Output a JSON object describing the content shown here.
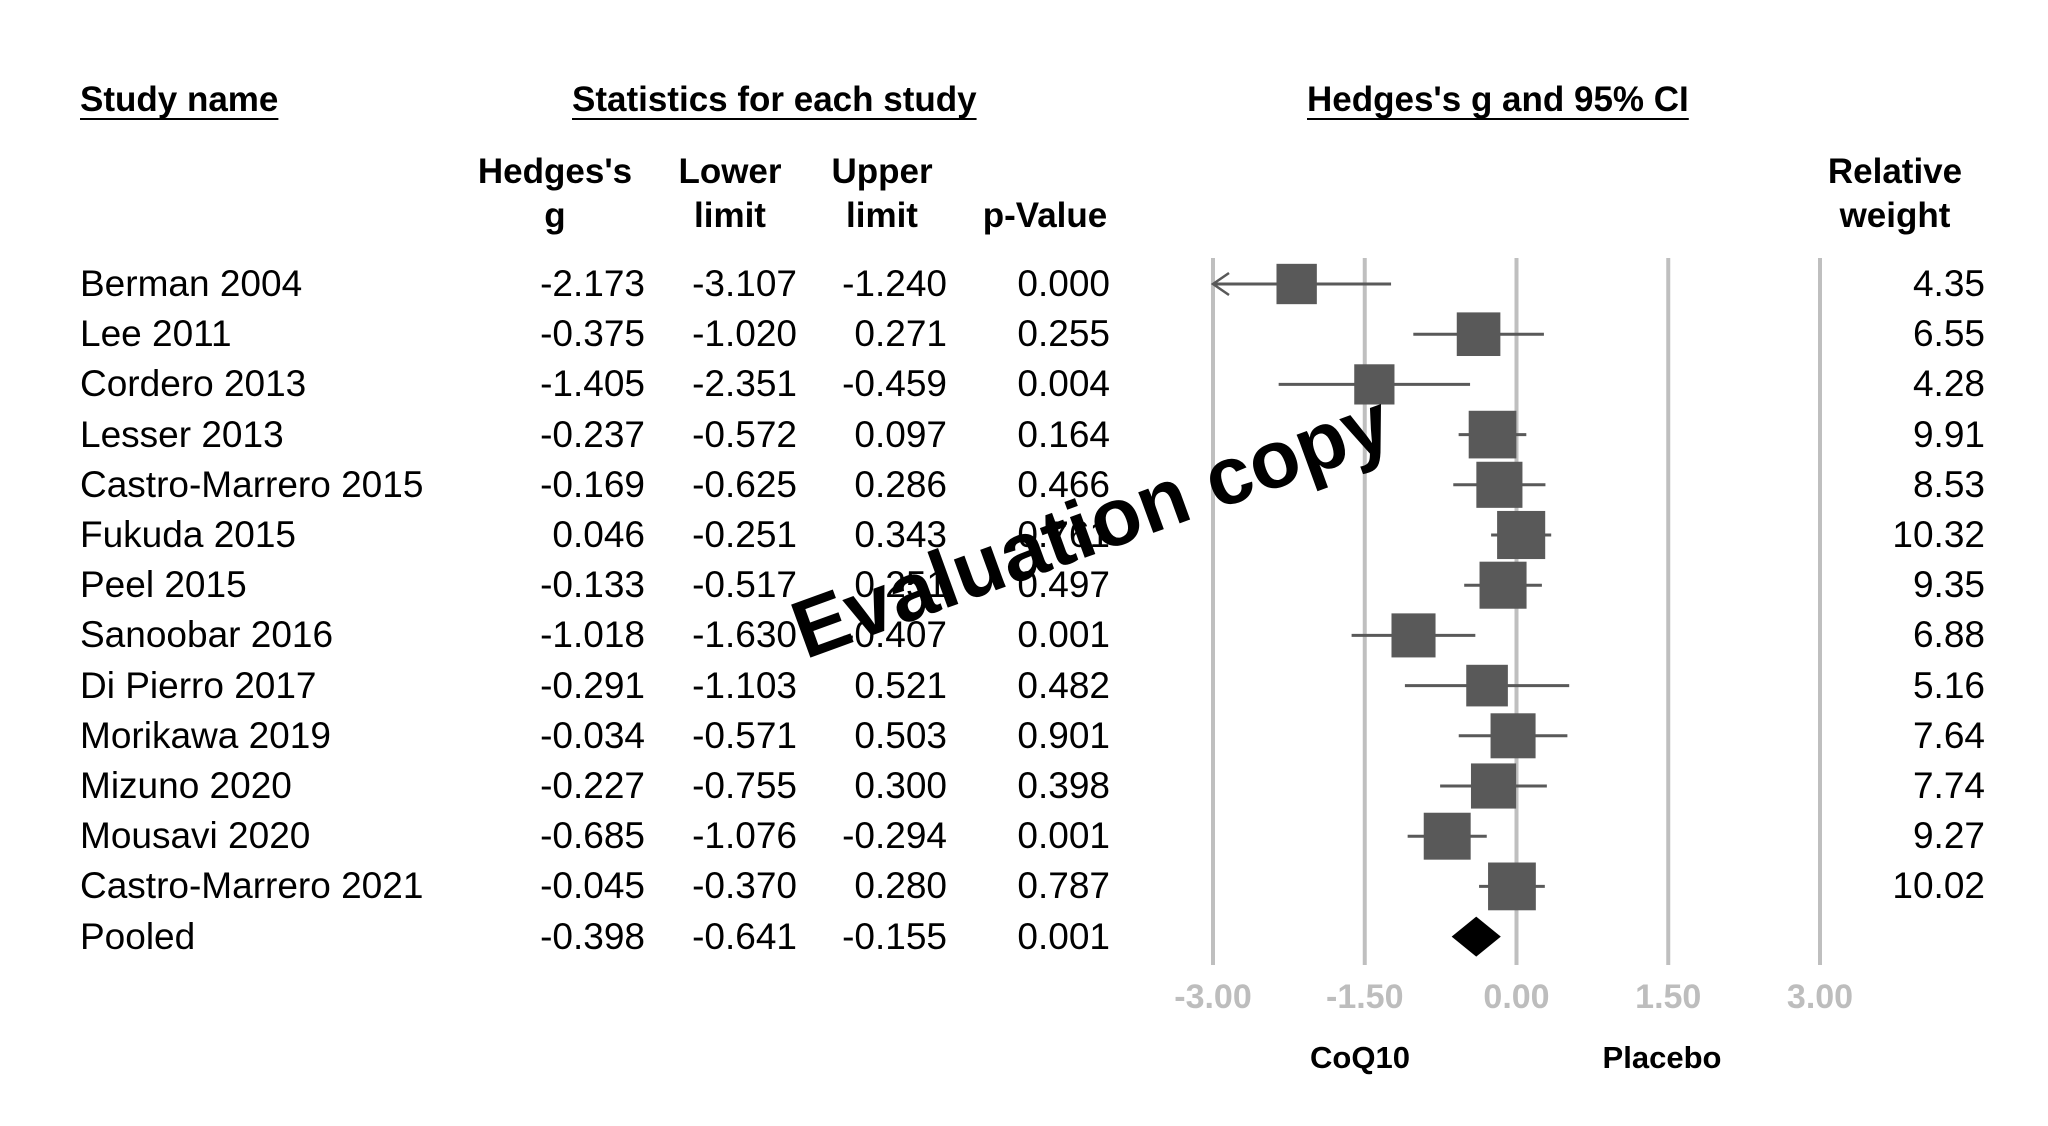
{
  "headers": {
    "study_name": "Study name",
    "statistics": "Statistics for each study",
    "hedges_ci": "Hedges's g and 95% CI"
  },
  "columns": {
    "g": [
      "Hedges's",
      "g"
    ],
    "lower": [
      "Lower",
      "limit"
    ],
    "upper": [
      "Upper",
      "limit"
    ],
    "p": [
      "",
      "p-Value"
    ],
    "weight": [
      "Relative",
      "weight"
    ]
  },
  "watermark": "Evaluation copy",
  "favors": {
    "left": "CoQ10",
    "right": "Placebo"
  },
  "colors": {
    "marker": "#595959",
    "pooled": "#000000",
    "gridline": "#bfbfbf",
    "tick_label": "#bdbdbd"
  },
  "chart_data": {
    "type": "forest",
    "xlim": [
      -3.0,
      3.0
    ],
    "ticks": [
      -3.0,
      -1.5,
      0.0,
      1.5,
      3.0
    ],
    "tick_labels": [
      "-3.00",
      "-1.50",
      "0.00",
      "1.50",
      "3.00"
    ],
    "studies": [
      {
        "name": "Berman 2004",
        "g": "-2.173",
        "lower": "-3.107",
        "upper": "-1.240",
        "p": "0.000",
        "weight": "4.35",
        "arrow_left": true
      },
      {
        "name": "Lee 2011",
        "g": "-0.375",
        "lower": "-1.020",
        "upper": "0.271",
        "p": "0.255",
        "weight": "6.55"
      },
      {
        "name": "Cordero 2013",
        "g": "-1.405",
        "lower": "-2.351",
        "upper": "-0.459",
        "p": "0.004",
        "weight": "4.28"
      },
      {
        "name": "Lesser 2013",
        "g": "-0.237",
        "lower": "-0.572",
        "upper": "0.097",
        "p": "0.164",
        "weight": "9.91"
      },
      {
        "name": "Castro-Marrero 2015",
        "g": "-0.169",
        "lower": "-0.625",
        "upper": "0.286",
        "p": "0.466",
        "weight": "8.53"
      },
      {
        "name": "Fukuda 2015",
        "g": "0.046",
        "lower": "-0.251",
        "upper": "0.343",
        "p": "0.761",
        "weight": "10.32"
      },
      {
        "name": "Peel 2015",
        "g": "-0.133",
        "lower": "-0.517",
        "upper": "0.251",
        "p": "0.497",
        "weight": "9.35"
      },
      {
        "name": "Sanoobar 2016",
        "g": "-1.018",
        "lower": "-1.630",
        "upper": "-0.407",
        "p": "0.001",
        "weight": "6.88"
      },
      {
        "name": "Di Pierro 2017",
        "g": "-0.291",
        "lower": "-1.103",
        "upper": "0.521",
        "p": "0.482",
        "weight": "5.16"
      },
      {
        "name": "Morikawa 2019",
        "g": "-0.034",
        "lower": "-0.571",
        "upper": "0.503",
        "p": "0.901",
        "weight": "7.64"
      },
      {
        "name": "Mizuno 2020",
        "g": "-0.227",
        "lower": "-0.755",
        "upper": "0.300",
        "p": "0.398",
        "weight": "7.74"
      },
      {
        "name": "Mousavi 2020",
        "g": "-0.685",
        "lower": "-1.076",
        "upper": "-0.294",
        "p": "0.001",
        "weight": "9.27"
      },
      {
        "name": "Castro-Marrero 2021",
        "g": "-0.045",
        "lower": "-0.370",
        "upper": "0.280",
        "p": "0.787",
        "weight": "10.02"
      }
    ],
    "pooled": {
      "name": "Pooled",
      "g": "-0.398",
      "lower": "-0.641",
      "upper": "-0.155",
      "p": "0.001"
    }
  }
}
